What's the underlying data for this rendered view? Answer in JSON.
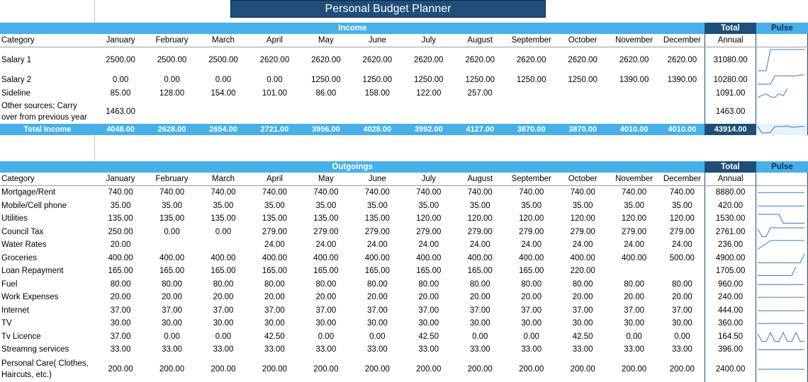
{
  "title": "Personal Budget Planner",
  "months": [
    "January",
    "February",
    "March",
    "April",
    "May",
    "June",
    "July",
    "August",
    "September",
    "October",
    "November",
    "December"
  ],
  "income": {
    "section_label": "Income",
    "total_label": "Total",
    "pulse_label": "Pulse",
    "category_header": "Category",
    "annual_header": "Annual",
    "rows": [
      {
        "name": "Salary 1",
        "values": [
          "2500.00",
          "2500.00",
          "2500.00",
          "2620.00",
          "2620.00",
          "2620.00",
          "2620.00",
          "2620.00",
          "2620.00",
          "2620.00",
          "2620.00",
          "2620.00"
        ],
        "total": "31080.00"
      },
      {
        "name": "Salary 2",
        "values": [
          "0.00",
          "0.00",
          "0.00",
          "0.00",
          "1250.00",
          "1250.00",
          "1250.00",
          "1250.00",
          "1250.00",
          "1250.00",
          "1390.00",
          "1390.00"
        ],
        "total": "10280.00"
      },
      {
        "name": "Sideline",
        "values": [
          "85.00",
          "128.00",
          "154.00",
          "101.00",
          "86.00",
          "158.00",
          "122.00",
          "257.00",
          "",
          "",
          "",
          ""
        ],
        "total": "1091.00"
      },
      {
        "name": "Other sources; Carry over from previous year",
        "values": [
          "1463.00",
          "",
          "",
          "",
          "",
          "",
          "",
          "",
          "",
          "",
          "",
          ""
        ],
        "total": "1463.00"
      }
    ],
    "summary": {
      "name": "Total Income",
      "values": [
        "4048.00",
        "2628.00",
        "2654.00",
        "2721.00",
        "3956.00",
        "4028.00",
        "3992.00",
        "4127.00",
        "3870.00",
        "3870.00",
        "4010.00",
        "4010.00"
      ],
      "total": "43914.00"
    }
  },
  "outgoings": {
    "section_label": "Outgoings",
    "total_label": "Total",
    "pulse_label": "Pulse",
    "category_header": "Category",
    "annual_header": "Annual",
    "rows": [
      {
        "name": "Mortgage/Rent",
        "values": [
          "740.00",
          "740.00",
          "740.00",
          "740.00",
          "740.00",
          "740.00",
          "740.00",
          "740.00",
          "740.00",
          "740.00",
          "740.00",
          "740.00"
        ],
        "total": "8880.00"
      },
      {
        "name": "Mobile/Cell phone",
        "values": [
          "35.00",
          "35.00",
          "35.00",
          "35.00",
          "35.00",
          "35.00",
          "35.00",
          "35.00",
          "35.00",
          "35.00",
          "35.00",
          "35.00"
        ],
        "total": "420.00"
      },
      {
        "name": "Utilities",
        "values": [
          "135.00",
          "135.00",
          "135.00",
          "135.00",
          "135.00",
          "135.00",
          "120.00",
          "120.00",
          "120.00",
          "120.00",
          "120.00",
          "120.00"
        ],
        "total": "1530.00"
      },
      {
        "name": "Council Tax",
        "values": [
          "250.00",
          "0.00",
          "0.00",
          "279.00",
          "279.00",
          "279.00",
          "279.00",
          "279.00",
          "279.00",
          "279.00",
          "279.00",
          "279.00"
        ],
        "total": "2761.00"
      },
      {
        "name": "Water Rates",
        "values": [
          "20.00",
          "",
          "",
          "24.00",
          "24.00",
          "24.00",
          "24.00",
          "24.00",
          "24.00",
          "24.00",
          "24.00",
          "24.00"
        ],
        "total": "236.00"
      },
      {
        "name": "Groceries",
        "values": [
          "400.00",
          "400.00",
          "400.00",
          "400.00",
          "400.00",
          "400.00",
          "400.00",
          "400.00",
          "400.00",
          "400.00",
          "400.00",
          "500.00"
        ],
        "total": "4900.00"
      },
      {
        "name": "Loan Repayment",
        "values": [
          "165.00",
          "165.00",
          "165.00",
          "165.00",
          "165.00",
          "165.00",
          "165.00",
          "165.00",
          "165.00",
          "220.00",
          "",
          ""
        ],
        "total": "1705.00"
      },
      {
        "name": "Fuel",
        "values": [
          "80.00",
          "80.00",
          "80.00",
          "80.00",
          "80.00",
          "80.00",
          "80.00",
          "80.00",
          "80.00",
          "80.00",
          "80.00",
          "80.00"
        ],
        "total": "960.00"
      },
      {
        "name": "Work Expenses",
        "values": [
          "20.00",
          "20.00",
          "20.00",
          "20.00",
          "20.00",
          "20.00",
          "20.00",
          "20.00",
          "20.00",
          "20.00",
          "20.00",
          "20.00"
        ],
        "total": "240.00"
      },
      {
        "name": "Internet",
        "values": [
          "37.00",
          "37.00",
          "37.00",
          "37.00",
          "37.00",
          "37.00",
          "37.00",
          "37.00",
          "37.00",
          "37.00",
          "37.00",
          "37.00"
        ],
        "total": "444.00"
      },
      {
        "name": "TV",
        "values": [
          "30.00",
          "30.00",
          "30.00",
          "30.00",
          "30.00",
          "30.00",
          "30.00",
          "30.00",
          "30.00",
          "30.00",
          "30.00",
          "30.00"
        ],
        "total": "360.00"
      },
      {
        "name": "Tv Licence",
        "values": [
          "37.00",
          "0.00",
          "0.00",
          "42.50",
          "0.00",
          "0.00",
          "42.50",
          "0.00",
          "0.00",
          "42.50",
          "0.00",
          "0.00"
        ],
        "total": "164.50"
      },
      {
        "name": "Streamng services",
        "values": [
          "33.00",
          "33.00",
          "33.00",
          "33.00",
          "33.00",
          "33.00",
          "33.00",
          "33.00",
          "33.00",
          "33.00",
          "33.00",
          "33.00"
        ],
        "total": "396.00"
      },
      {
        "name": "Personal Care( Clothes, Haircuts, etc.)",
        "values": [
          "200.00",
          "200.00",
          "200.00",
          "200.00",
          "200.00",
          "200.00",
          "200.00",
          "200.00",
          "200.00",
          "200.00",
          "200.00",
          "200.00"
        ],
        "total": "2400.00"
      }
    ]
  },
  "colors": {
    "band": "#47b0e8",
    "dark": "#1f4e79",
    "spark": "#3d7ab8"
  }
}
